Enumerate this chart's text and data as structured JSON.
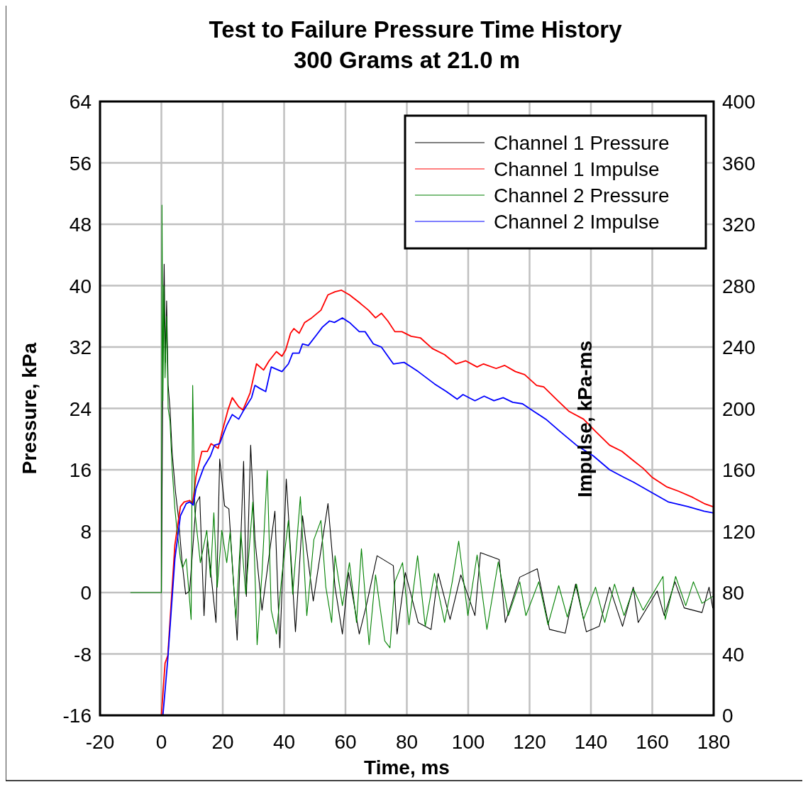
{
  "chart_data": {
    "type": "line",
    "title": "Test to Failure Pressure Time History",
    "subtitle": "300 Grams at 21.0 m",
    "xlabel": "Time, ms",
    "ylabel": "Pressure, kPa",
    "y2label": "Impulse, kPa-ms",
    "xlim": [
      -20,
      180
    ],
    "xticks": [
      -20,
      0,
      20,
      40,
      60,
      80,
      100,
      120,
      140,
      160,
      180
    ],
    "ylim": [
      -16,
      64
    ],
    "yticks": [
      -16,
      -8,
      0,
      8,
      16,
      24,
      32,
      40,
      48,
      56,
      64
    ],
    "y2lim": [
      0,
      400
    ],
    "y2ticks": [
      0,
      40,
      80,
      120,
      160,
      200,
      240,
      280,
      320,
      360,
      400
    ],
    "grid": true,
    "legend": "top right",
    "marker": "none",
    "line_style": "solid",
    "series": [
      {
        "name": "Channel 1 Pressure",
        "color": "#000000",
        "x": [
          0,
          0.5,
          0.9,
          1.3,
          1.7,
          2.2,
          2.8,
          3.5,
          4.6,
          5.5,
          6.7,
          7.9,
          9.2,
          11.3,
          12.5,
          13.9,
          15,
          17.8,
          19,
          20.6,
          22,
          24.7,
          26.8,
          27.7,
          29.1,
          30.5,
          32.8,
          37,
          38.6,
          40.7,
          43.7,
          46,
          49.5,
          54.3,
          56.6,
          59,
          61,
          64.5,
          66.8,
          70.3,
          75.6,
          76.8,
          79.5,
          83.7,
          87.9,
          90.2,
          94.1,
          97.6,
          102.2,
          104,
          110.1,
          112.1,
          116.8,
          122.5,
          126.5,
          131.6,
          135,
          138.5,
          142.7,
          146.1,
          150.3,
          153.8,
          155.4,
          161.6,
          163.9,
          167.4,
          170.4,
          176.2,
          178.5,
          179.7
        ],
        "values": [
          0,
          30,
          42.8,
          30,
          38,
          27,
          24,
          18.3,
          13.1,
          10,
          4.2,
          -0.2,
          0.2,
          11.6,
          12.5,
          -3,
          6.9,
          -3.9,
          17.4,
          11.3,
          10.9,
          -6.2,
          17.1,
          -0.5,
          19.2,
          6.9,
          -2.3,
          10.6,
          -7.2,
          14.8,
          -5.1,
          10,
          -1.1,
          11.6,
          0.7,
          -5.4,
          2.6,
          -5.4,
          -1.7,
          4.8,
          3.5,
          -5.4,
          2.6,
          -3.9,
          -4.8,
          2.5,
          -3.5,
          2.3,
          -3,
          5.2,
          4.3,
          -3.9,
          2,
          3.1,
          -4.8,
          -5.3,
          1.1,
          -5.1,
          -4.4,
          0.7,
          -4.4,
          0.7,
          -3.9,
          0.2,
          -3,
          1.4,
          -2,
          -2.6,
          0.7,
          -2
        ]
      },
      {
        "name": "Channel 1 Impulse",
        "color": "#ff0000",
        "axis": "y2",
        "x": [
          0,
          1.2,
          2.1,
          4.4,
          6.2,
          7.4,
          9.2,
          10.2,
          11.3,
          13.2,
          15,
          16.2,
          18.5,
          19.7,
          21.7,
          23.1,
          25.2,
          26.6,
          28.9,
          31,
          33.3,
          35.1,
          37.5,
          39.3,
          40.5,
          42.1,
          43.2,
          44.9,
          46.7,
          49,
          52,
          54.3,
          56.6,
          58.7,
          61.3,
          64.5,
          67.5,
          69.8,
          71.7,
          73.8,
          76.1,
          78.4,
          81.4,
          84.4,
          88.3,
          92.3,
          96,
          99.2,
          102.9,
          105,
          109.1,
          111.9,
          115.4,
          118.4,
          122.3,
          124.6,
          129.2,
          132.9,
          137.6,
          141.5,
          146.1,
          150.1,
          153.8,
          157,
          160,
          164.6,
          168.6,
          173.2,
          176.9,
          179.7
        ],
        "values": [
          0,
          34,
          39,
          111,
          136,
          139,
          140,
          138,
          156,
          172,
          172,
          177,
          174,
          184,
          199,
          207,
          201,
          199,
          210,
          229,
          225,
          231,
          237,
          234,
          238,
          249,
          252,
          249,
          256,
          259,
          264,
          274,
          276,
          277,
          274,
          269,
          264,
          259,
          262,
          257,
          250,
          250,
          247,
          246,
          239,
          235,
          229,
          231,
          227,
          229,
          226,
          228,
          224,
          222,
          215,
          214,
          205,
          198,
          193,
          185,
          176,
          172,
          166,
          161,
          155,
          149,
          146,
          142,
          138,
          136
        ]
      },
      {
        "name": "Channel 2 Pressure",
        "color": "#008000",
        "x": [
          -10,
          0,
          0.2,
          0.5,
          0.8,
          1.2,
          1.7,
          2.2,
          2.8,
          3.5,
          4.4,
          5.1,
          6.2,
          6.9,
          8.1,
          9.7,
          10.2,
          10.9,
          12.7,
          14.8,
          16,
          17.1,
          18.2,
          19.7,
          21.3,
          22.4,
          24.3,
          25.9,
          27.5,
          29.8,
          31.2,
          32.8,
          34.5,
          35.8,
          37.5,
          39.3,
          41.4,
          42.8,
          45.3,
          47.4,
          49.7,
          52,
          53.6,
          55.5,
          56.6,
          59,
          61.3,
          63.6,
          65.2,
          67.7,
          69.8,
          72.8,
          74.5,
          76.1,
          78.6,
          80.7,
          83.5,
          86,
          89,
          92.3,
          94.8,
          96.9,
          99.9,
          102.9,
          106.1,
          109.8,
          113.1,
          116.8,
          118.8,
          123,
          126,
          129.5,
          132.3,
          135.3,
          137.6,
          141.5,
          144.5,
          147.7,
          150.8,
          153.8,
          157,
          163.5,
          164.2,
          167.6,
          170.9,
          173.4,
          176.2,
          179.7
        ],
        "values": [
          0,
          0,
          50.5,
          25,
          40,
          28,
          36,
          24,
          22.4,
          16.2,
          10.9,
          8.1,
          4.4,
          3.2,
          4.4,
          -3.5,
          27,
          10.6,
          3.9,
          8.1,
          2,
          10.4,
          0.7,
          8.1,
          3.9,
          7.9,
          -3.5,
          7.9,
          -0.2,
          11.8,
          -6.8,
          2.6,
          15.9,
          -2.3,
          -5.4,
          2.3,
          9.4,
          -0.2,
          12.5,
          -3,
          6.9,
          9.4,
          0.7,
          -3.9,
          4.8,
          -1.7,
          3.9,
          -3.9,
          5.7,
          -6.8,
          2.3,
          -6.3,
          -7.2,
          1.4,
          3.9,
          -4.2,
          4.8,
          -4.4,
          2.5,
          -3.9,
          1.4,
          6.7,
          -3,
          4.9,
          -4.8,
          4,
          -3,
          1.4,
          -3,
          1.4,
          -4.2,
          0.9,
          -3.2,
          1.1,
          -3.5,
          0.7,
          -3.9,
          1.1,
          -3,
          0.5,
          -2.3,
          2.1,
          -3.5,
          2.1,
          -1.7,
          1.4,
          -1.4,
          -0.5
        ]
      },
      {
        "name": "Channel 2 Impulse",
        "color": "#0000ff",
        "axis": "y2",
        "x": [
          0.5,
          2.1,
          4.4,
          6.2,
          8.1,
          9.2,
          10.4,
          11.3,
          13.9,
          16,
          17.3,
          19,
          21.3,
          23.1,
          25.2,
          26.6,
          29.4,
          30.5,
          32.1,
          34,
          35.8,
          39.3,
          41.4,
          42.8,
          44.9,
          46,
          47.9,
          50.6,
          52.5,
          54.8,
          56.4,
          59,
          61.3,
          64.5,
          66.4,
          69.1,
          71.7,
          75.6,
          79.1,
          81.4,
          83.7,
          89,
          92.9,
          96.4,
          98.3,
          102.2,
          105.2,
          108.4,
          111.4,
          114.5,
          117.7,
          121.4,
          125.3,
          129.9,
          135.3,
          140.8,
          146.1,
          150.8,
          153.8,
          160,
          165.3,
          171.6,
          176.9,
          179.7
        ],
        "values": [
          0,
          37,
          102,
          130,
          138,
          139,
          137,
          148,
          162,
          169,
          176,
          177,
          189,
          196,
          193,
          198,
          207,
          215,
          213,
          211,
          227,
          224,
          229,
          236,
          236,
          242,
          241,
          248,
          253,
          257,
          256,
          259,
          256,
          250,
          250,
          242,
          240,
          229,
          230,
          227,
          224,
          216,
          211,
          206,
          209,
          205,
          208,
          205,
          207,
          204,
          203,
          198,
          193,
          185,
          176,
          169,
          160,
          155,
          152,
          145,
          139,
          136,
          133,
          132
        ]
      }
    ]
  }
}
